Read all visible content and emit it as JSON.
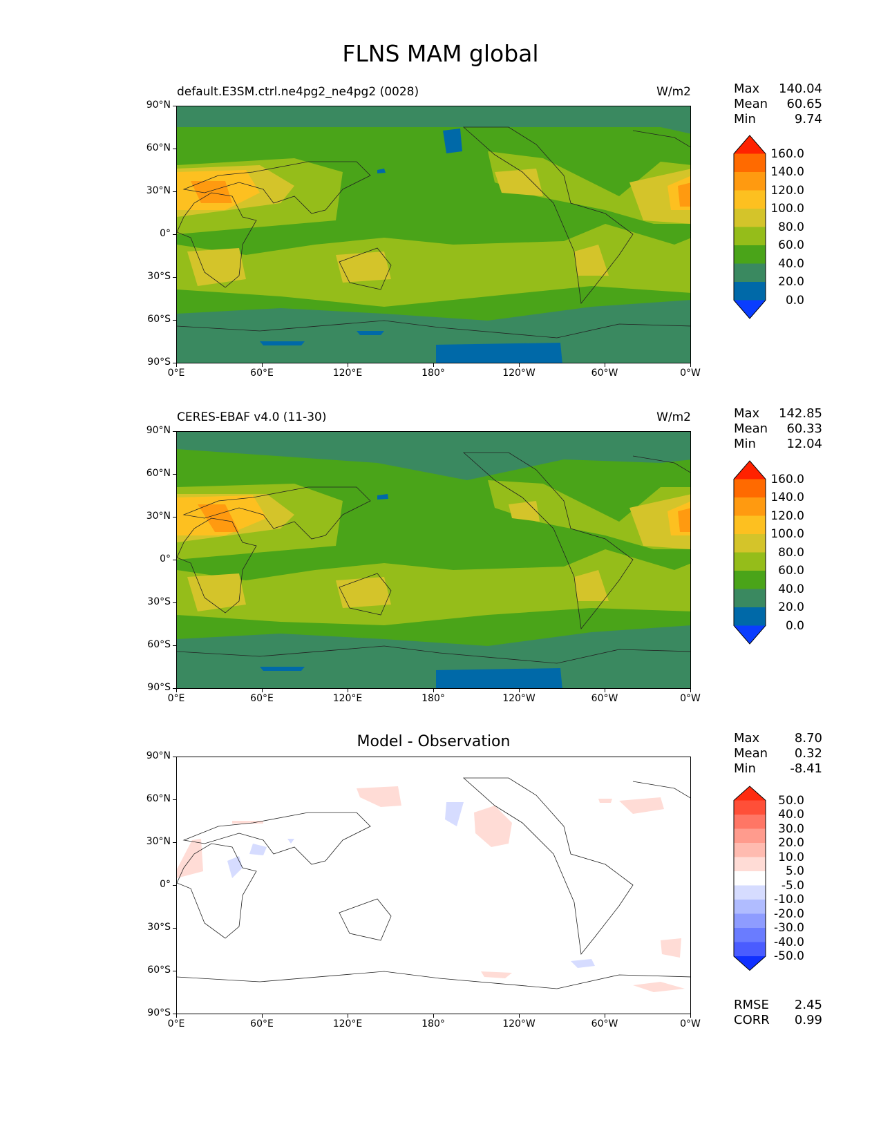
{
  "figure": {
    "title": "FLNS MAM global"
  },
  "panels": [
    {
      "id": "test",
      "label": "default.E3SM.ctrl.ne4pg2_ne4pg2 (0028)",
      "units": "W/m2",
      "stats": {
        "max_label": "Max",
        "max": "140.04",
        "mean_label": "Mean",
        "mean": "60.65",
        "min_label": "Min",
        "min": "9.74"
      }
    },
    {
      "id": "ref",
      "label": "CERES-EBAF v4.0 (11-30)",
      "units": "W/m2",
      "stats": {
        "max_label": "Max",
        "max": "142.85",
        "mean_label": "Mean",
        "mean": "60.33",
        "min_label": "Min",
        "min": "12.04"
      }
    },
    {
      "id": "diff",
      "label": "Model - Observation",
      "units": "",
      "stats": {
        "max_label": "Max",
        "max": "8.70",
        "mean_label": "Mean",
        "mean": "0.32",
        "min_label": "Min",
        "min": "-8.41"
      },
      "extra": {
        "rmse_label": "RMSE",
        "rmse": "2.45",
        "corr_label": "CORR",
        "corr": "0.99"
      }
    }
  ],
  "axes": {
    "yticks": [
      "90°N",
      "60°N",
      "30°N",
      "0°",
      "30°S",
      "60°S",
      "90°S"
    ],
    "xticks": [
      "0°E",
      "60°E",
      "120°E",
      "180°",
      "120°W",
      "60°W",
      "0°W"
    ]
  },
  "colorbars": {
    "main": {
      "labels": [
        "160.0",
        "140.0",
        "120.0",
        "100.0",
        "80.0",
        "60.0",
        "40.0",
        "20.0",
        "0.0"
      ],
      "colors": [
        "#ff2200",
        "#ff6a00",
        "#ff9a10",
        "#fdc020",
        "#d4c42a",
        "#95bd1a",
        "#4aa419",
        "#3a8960",
        "#0069a8",
        "#0a3dff"
      ]
    },
    "diff": {
      "labels": [
        "50.0",
        "40.0",
        "30.0",
        "20.0",
        "10.0",
        "5.0",
        "-5.0",
        "-10.0",
        "-20.0",
        "-30.0",
        "-40.0",
        "-50.0"
      ],
      "colors": [
        "#ff2b10",
        "#ff4f38",
        "#ff7665",
        "#ff9b8d",
        "#ffbbb0",
        "#ffdcd6",
        "#ffffff",
        "#d6dcff",
        "#b0bcff",
        "#8e9cff",
        "#6a7cff",
        "#4a5cff",
        "#1030ff"
      ]
    }
  },
  "chart_data": [
    {
      "type": "heatmap",
      "title": "default.E3SM.ctrl.ne4pg2_ne4pg2 (0028)",
      "units": "W/m2",
      "xlim": [
        0,
        360
      ],
      "ylim": [
        -90,
        90
      ],
      "levels": [
        0,
        20,
        40,
        60,
        80,
        100,
        120,
        140,
        160
      ],
      "stats": {
        "max": 140.04,
        "mean": 60.65,
        "min": 9.74
      }
    },
    {
      "type": "heatmap",
      "title": "CERES-EBAF v4.0 (11-30)",
      "units": "W/m2",
      "xlim": [
        0,
        360
      ],
      "ylim": [
        -90,
        90
      ],
      "levels": [
        0,
        20,
        40,
        60,
        80,
        100,
        120,
        140,
        160
      ],
      "stats": {
        "max": 142.85,
        "mean": 60.33,
        "min": 12.04
      }
    },
    {
      "type": "heatmap",
      "title": "Model - Observation",
      "xlim": [
        0,
        360
      ],
      "ylim": [
        -90,
        90
      ],
      "levels": [
        -50,
        -40,
        -30,
        -20,
        -10,
        -5,
        5,
        10,
        20,
        30,
        40,
        50
      ],
      "stats": {
        "max": 8.7,
        "mean": 0.32,
        "min": -8.41,
        "rmse": 2.45,
        "corr": 0.99
      }
    }
  ]
}
